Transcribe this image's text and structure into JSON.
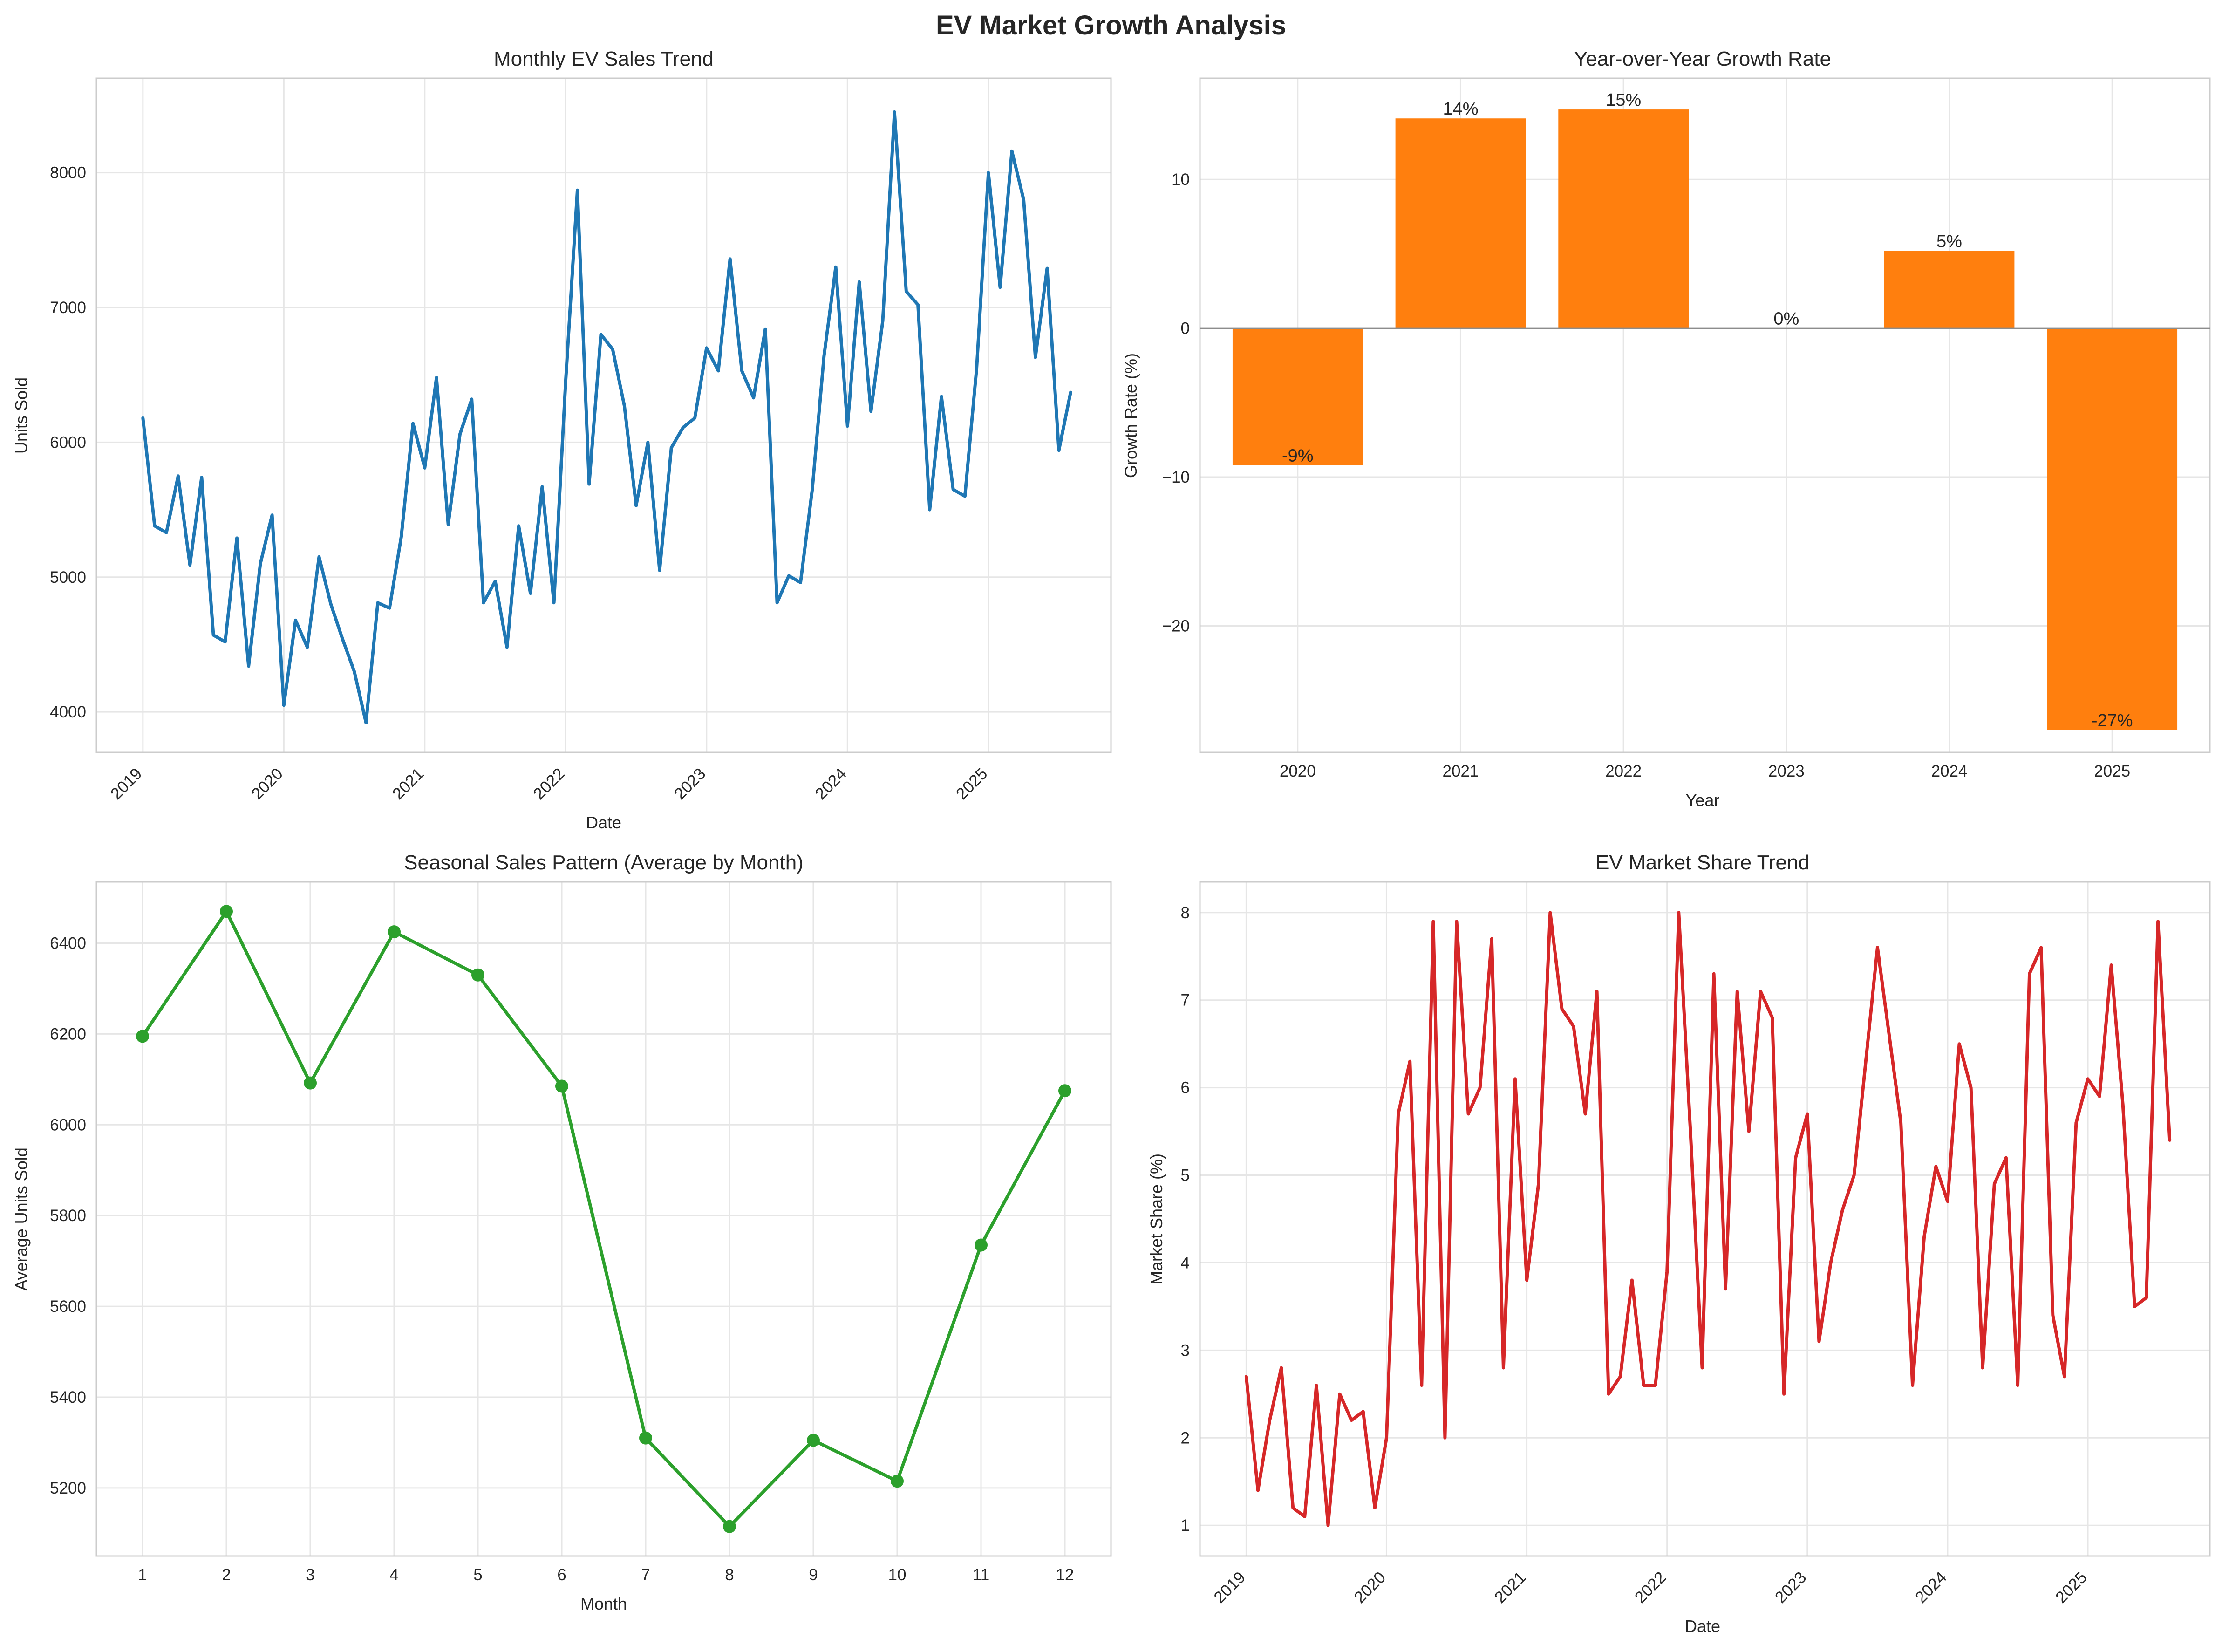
{
  "figure": {
    "title": "EV Market Growth Analysis"
  },
  "chart_data": [
    {
      "id": "monthly",
      "type": "line",
      "title": "Monthly EV Sales Trend",
      "xlabel": "Date",
      "ylabel": "Units Sold",
      "color": "#1f77b4",
      "grid": true,
      "xlim": [
        2018.67,
        2025.87
      ],
      "ylim": [
        3700,
        8700
      ],
      "yticks": [
        4000,
        5000,
        6000,
        7000,
        8000
      ],
      "xticks": [
        2019,
        2020,
        2021,
        2022,
        2023,
        2024,
        2025
      ],
      "series": [
        {
          "x_start": "2019-01",
          "values": [
            6180,
            5380,
            5330,
            5750,
            5090,
            5740,
            4570,
            4520,
            5290,
            4340,
            5100,
            5460,
            4050,
            4680,
            4480,
            5150,
            4800,
            4540,
            4300,
            3920,
            4810,
            4770,
            5300,
            6140,
            5810,
            6480,
            5390,
            6060,
            6320,
            4810,
            4970,
            4480,
            5380,
            4880,
            5670,
            4810,
            6450,
            7870,
            5690,
            6800,
            6690,
            6270,
            5530,
            6000,
            5050,
            5960,
            6110,
            6180,
            6700,
            6530,
            7360,
            6530,
            6330,
            6840,
            4810,
            5010,
            4960,
            5650,
            6640,
            7300,
            6120,
            7190,
            6230,
            6900,
            8450,
            7120,
            7020,
            5500,
            6340,
            5650,
            5600,
            6550,
            8000,
            7150,
            8160,
            7800,
            6630,
            7290,
            5940,
            6370
          ]
        }
      ]
    },
    {
      "id": "yoy",
      "type": "bar",
      "title": "Year-over-Year Growth Rate",
      "xlabel": "Year",
      "ylabel": "Growth Rate (%)",
      "color": "#ff7f0e",
      "grid": true,
      "categories": [
        "2020",
        "2021",
        "2022",
        "2023",
        "2024",
        "2025"
      ],
      "values": [
        -9.2,
        14.1,
        14.7,
        0.0,
        5.2,
        -27.0
      ],
      "labels": [
        "-9%",
        "14%",
        "15%",
        "0%",
        "5%",
        "-27%"
      ],
      "ylim": [
        -28.5,
        16.8
      ],
      "yticks": [
        10,
        0,
        -10,
        -20
      ],
      "ytick_labels": [
        "10",
        "0",
        "−10",
        "−20"
      ]
    },
    {
      "id": "seasonal",
      "type": "line",
      "title": "Seasonal Sales Pattern (Average by Month)",
      "xlabel": "Month",
      "ylabel": "Average Units Sold",
      "color": "#2ca02c",
      "markers": true,
      "grid": true,
      "categories": [
        "1",
        "2",
        "3",
        "4",
        "5",
        "6",
        "7",
        "8",
        "9",
        "10",
        "11",
        "12"
      ],
      "values": [
        6195,
        6470,
        6092,
        6425,
        6330,
        6085,
        5310,
        5115,
        5305,
        5215,
        5735,
        6075
      ],
      "xlim": [
        0.45,
        12.55
      ],
      "ylim": [
        5050,
        6535
      ],
      "yticks": [
        5200,
        5400,
        5600,
        5800,
        6000,
        6200,
        6400
      ]
    },
    {
      "id": "share",
      "type": "line",
      "title": "EV Market Share Trend",
      "xlabel": "Date",
      "ylabel": "Market Share (%)",
      "color": "#d62728",
      "grid": true,
      "xlim": [
        2018.67,
        2025.87
      ],
      "ylim": [
        0.65,
        8.35
      ],
      "yticks": [
        1,
        2,
        3,
        4,
        5,
        6,
        7,
        8
      ],
      "xticks": [
        2019,
        2020,
        2021,
        2022,
        2023,
        2024,
        2025
      ],
      "series": [
        {
          "x_start": "2019-01",
          "values": [
            2.7,
            1.4,
            2.2,
            2.8,
            1.2,
            1.1,
            2.6,
            1.0,
            2.5,
            2.2,
            2.3,
            1.2,
            2.0,
            5.7,
            6.3,
            2.6,
            7.9,
            2.0,
            7.9,
            5.7,
            6.0,
            7.7,
            2.8,
            6.1,
            3.8,
            4.9,
            8.0,
            6.9,
            6.7,
            5.7,
            7.1,
            2.5,
            2.7,
            3.8,
            2.6,
            2.6,
            3.9,
            8.0,
            5.5,
            2.8,
            7.3,
            3.7,
            7.1,
            5.5,
            7.1,
            6.8,
            2.5,
            5.2,
            5.7,
            3.1,
            4.0,
            4.6,
            5.0,
            6.3,
            7.6,
            6.6,
            5.6,
            2.6,
            4.3,
            5.1,
            4.7,
            6.5,
            6.0,
            2.8,
            4.9,
            5.2,
            2.6,
            7.3,
            7.6,
            3.4,
            2.7,
            5.6,
            6.1,
            5.9,
            7.4,
            5.8,
            3.5,
            3.6,
            7.9,
            5.4
          ]
        }
      ]
    }
  ]
}
